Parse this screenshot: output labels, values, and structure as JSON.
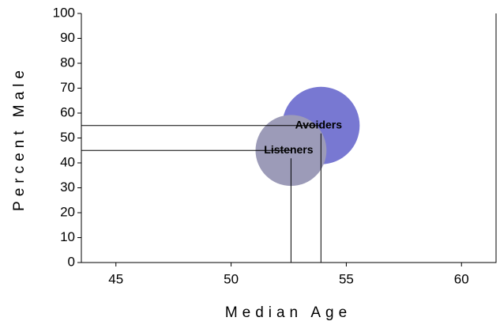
{
  "chart_data": {
    "type": "bubble",
    "xlabel": "Median Age",
    "ylabel": "Percent Male",
    "xlim": [
      43.5,
      61.5
    ],
    "xticks": [
      45,
      50,
      55,
      60
    ],
    "ylim": [
      0,
      100
    ],
    "yticks": [
      0,
      10,
      20,
      30,
      40,
      50,
      60,
      70,
      80,
      90,
      100
    ],
    "series": [
      {
        "name": "Avoiders",
        "color": "#7878d2",
        "x": [
          53.9
        ],
        "values": [
          55
        ],
        "sizes": [
          100
        ]
      },
      {
        "name": "Listeners",
        "color": "#9c9bb8",
        "x": [
          52.6
        ],
        "values": [
          45
        ],
        "sizes": [
          84
        ]
      }
    ]
  }
}
